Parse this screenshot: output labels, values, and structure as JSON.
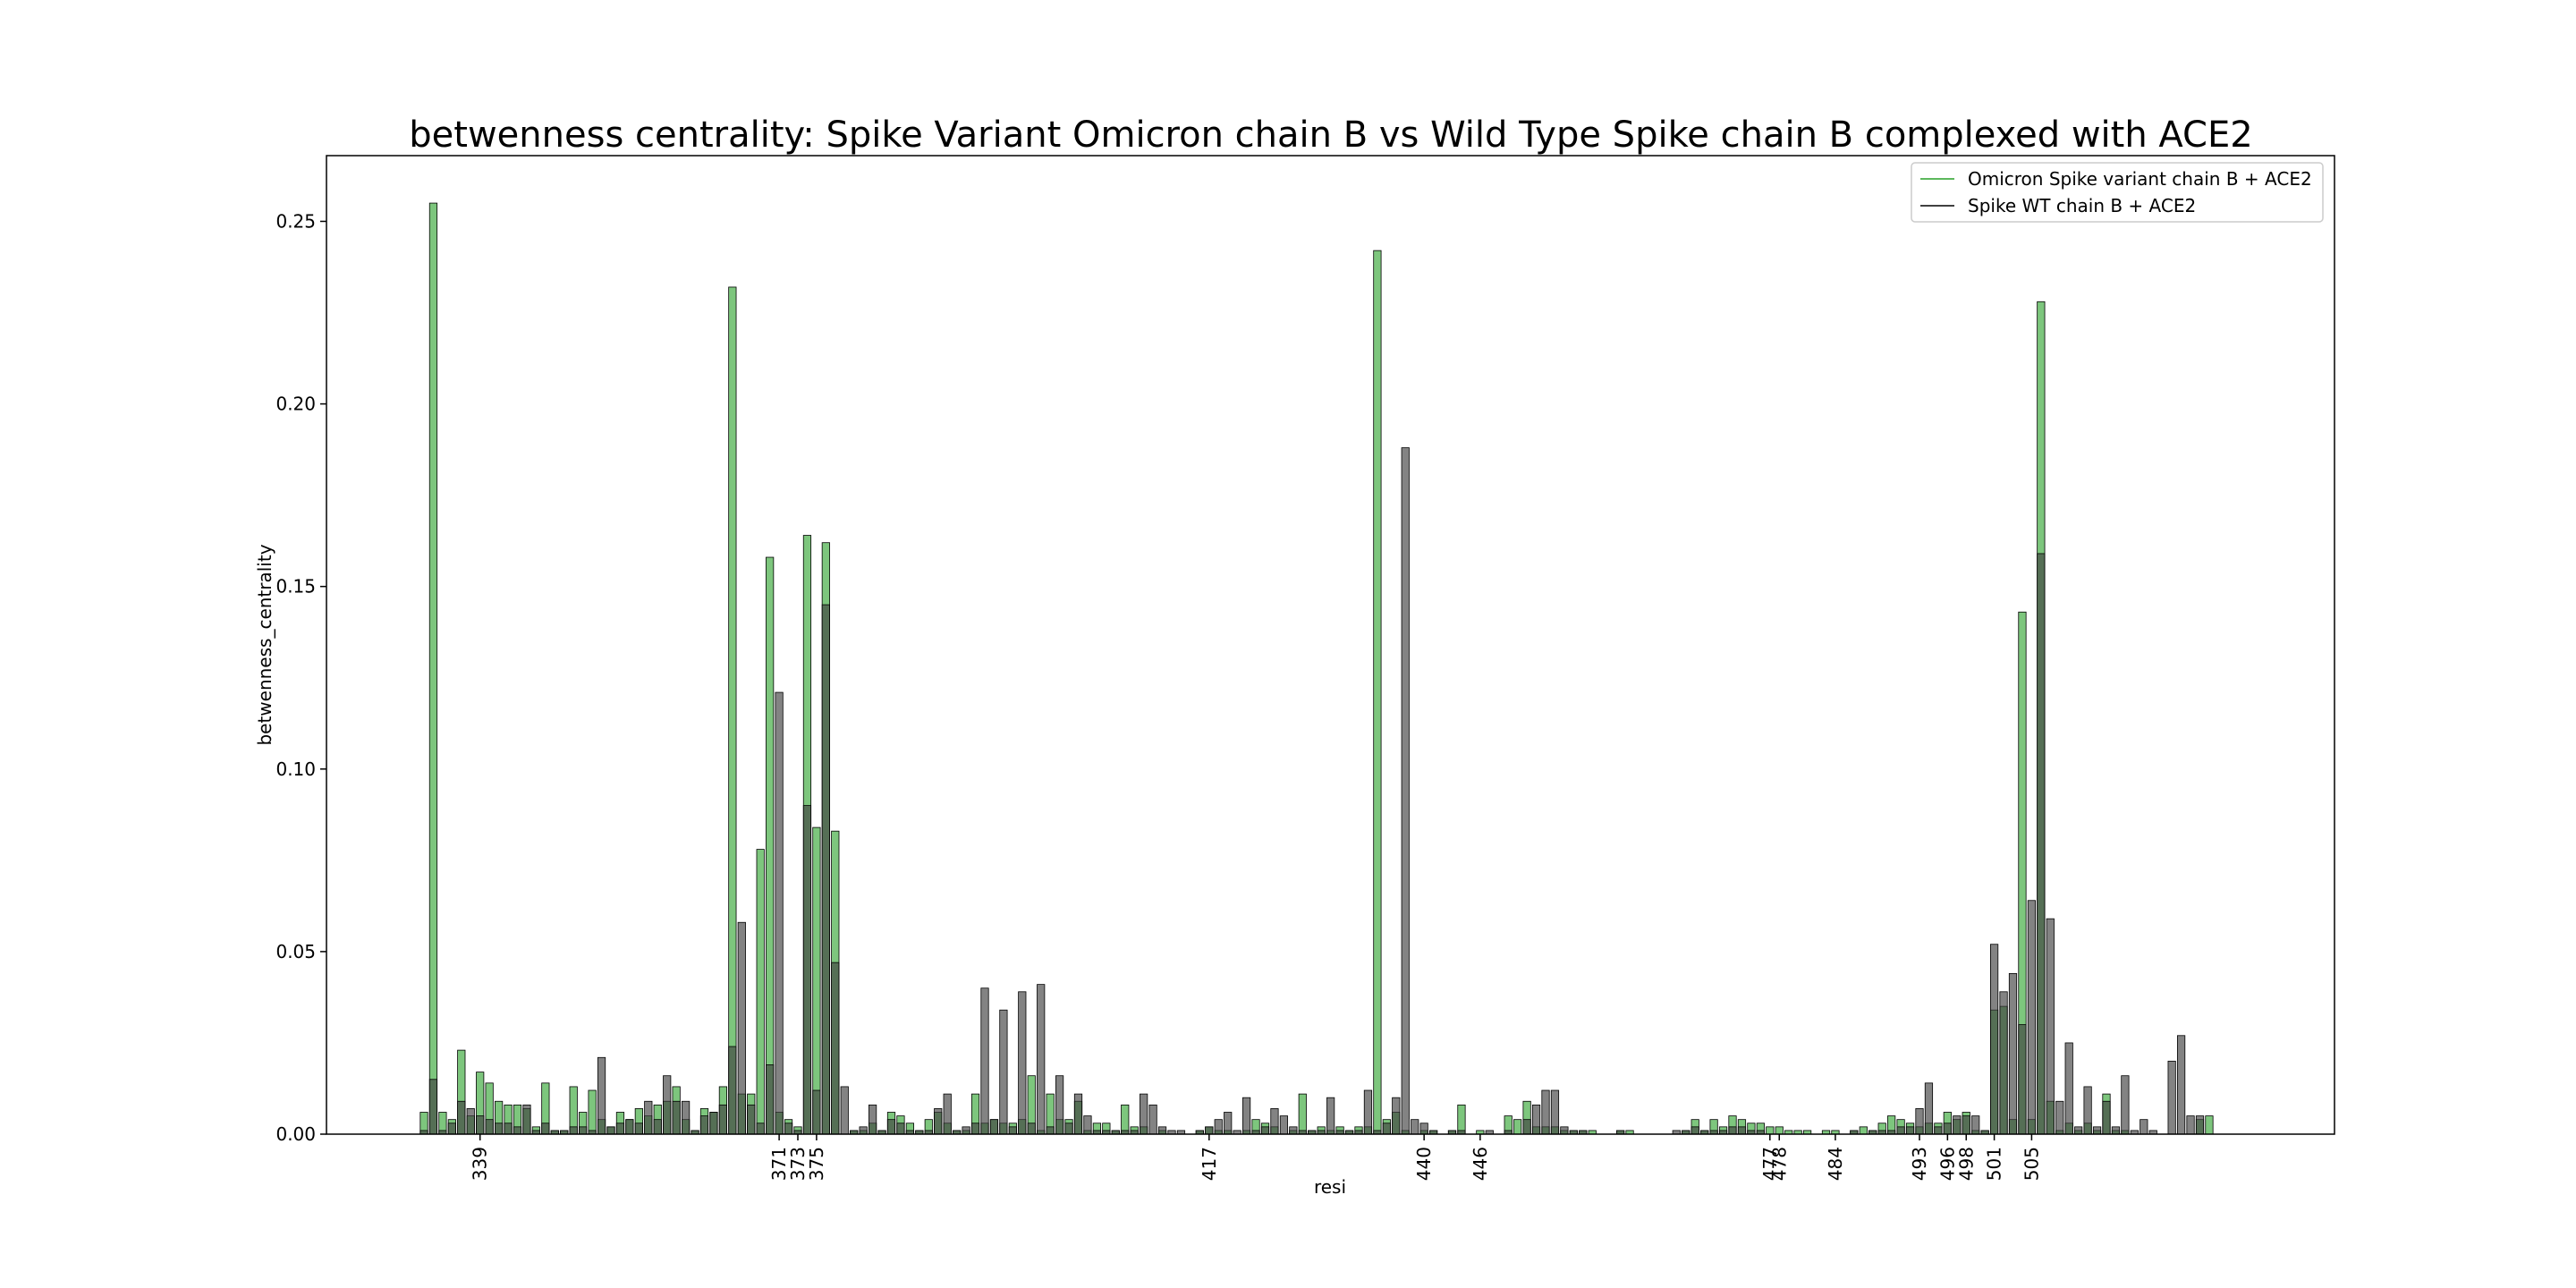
{
  "chart_data": {
    "type": "bar",
    "title": "betwenness centrality: Spike Variant Omicron chain B vs Wild Type Spike chain B complexed with ACE2",
    "xlabel": "resi",
    "ylabel": "betwenness_centrality",
    "ylim": [
      0,
      0.268
    ],
    "yticks": [
      0.0,
      0.05,
      0.1,
      0.15,
      0.2,
      0.25
    ],
    "ytick_labels": [
      "0.00",
      "0.05",
      "0.10",
      "0.15",
      "0.20",
      "0.25"
    ],
    "x_start_resi": 333,
    "xtick_values": [
      339,
      371,
      373,
      375,
      417,
      440,
      446,
      477,
      478,
      484,
      493,
      496,
      498,
      501,
      505
    ],
    "xtick_labels": [
      "339",
      "371",
      "373",
      "375",
      "417",
      "440",
      "446",
      "477",
      "478",
      "484",
      "493",
      "496",
      "498",
      "501",
      "505"
    ],
    "grid": false,
    "legend_position": "top-right",
    "colors": {
      "omicron": "#5cb85c",
      "wt": "#404040"
    },
    "series": [
      {
        "name": "Omicron Spike variant chain B + ACE2",
        "values": [
          0.006,
          0.255,
          0.006,
          0.004,
          0.023,
          0.005,
          0.017,
          0.014,
          0.009,
          0.008,
          0.008,
          0.007,
          0.002,
          0.014,
          0.001,
          0.001,
          0.013,
          0.006,
          0.012,
          0.004,
          0.002,
          0.006,
          0.004,
          0.007,
          0.005,
          0.008,
          0.009,
          0.013,
          0.004,
          0.001,
          0.007,
          0.006,
          0.013,
          0.232,
          0.011,
          0.011,
          0.078,
          0.158,
          0.006,
          0.004,
          0.002,
          0.164,
          0.084,
          0.162,
          0.083,
          0.0,
          0.001,
          0.001,
          0.003,
          0.001,
          0.006,
          0.005,
          0.003,
          0.001,
          0.004,
          0.006,
          0.003,
          0.001,
          0.001,
          0.011,
          0.003,
          0.004,
          0.003,
          0.003,
          0.004,
          0.016,
          0.001,
          0.011,
          0.004,
          0.004,
          0.009,
          0.001,
          0.003,
          0.003,
          0.001,
          0.008,
          0.002,
          0.002,
          0.0,
          0.001,
          0.0,
          0.0,
          0.0,
          0.001,
          0.002,
          0.001,
          0.001,
          0.0,
          0.001,
          0.004,
          0.003,
          0.002,
          0.0,
          0.001,
          0.011,
          0.001,
          0.002,
          0.001,
          0.002,
          0.001,
          0.002,
          0.002,
          0.242,
          0.004,
          0.006,
          0.001,
          0.0,
          0.001,
          0.001,
          0.0,
          0.001,
          0.008,
          0.0,
          0.001,
          0.0,
          0.0,
          0.005,
          0.004,
          0.009,
          0.002,
          0.002,
          0.002,
          0.001,
          0.001,
          0.001,
          0.001,
          0.0,
          0.0,
          0.001,
          0.001,
          0.0,
          0.0,
          0.0,
          0.0,
          0.0,
          0.001,
          0.004,
          0.001,
          0.004,
          0.002,
          0.005,
          0.004,
          0.003,
          0.003,
          0.002,
          0.002,
          0.001,
          0.001,
          0.001,
          0.0,
          0.001,
          0.001,
          0.0,
          0.001,
          0.002,
          0.001,
          0.003,
          0.005,
          0.004,
          0.003,
          0.002,
          0.003,
          0.003,
          0.006,
          0.004,
          0.006,
          0.001,
          0.001,
          0.034,
          0.035,
          0.004,
          0.143,
          0.004,
          0.228,
          0.009,
          0.001,
          0.003,
          0.001,
          0.003,
          0.001,
          0.011,
          0.001,
          0.001,
          0.0,
          0.0,
          0.0,
          0.0,
          0.0,
          0.0,
          0.0,
          0.004,
          0.005
        ]
      },
      {
        "name": "Spike WT chain B + ACE2",
        "values": [
          0.001,
          0.015,
          0.001,
          0.003,
          0.009,
          0.007,
          0.005,
          0.004,
          0.003,
          0.003,
          0.002,
          0.008,
          0.001,
          0.003,
          0.001,
          0.001,
          0.002,
          0.002,
          0.001,
          0.021,
          0.002,
          0.003,
          0.004,
          0.003,
          0.009,
          0.004,
          0.016,
          0.009,
          0.009,
          0.001,
          0.005,
          0.006,
          0.008,
          0.024,
          0.058,
          0.008,
          0.003,
          0.019,
          0.121,
          0.003,
          0.001,
          0.09,
          0.012,
          0.145,
          0.047,
          0.013,
          0.001,
          0.002,
          0.008,
          0.001,
          0.004,
          0.003,
          0.001,
          0.001,
          0.001,
          0.007,
          0.011,
          0.001,
          0.002,
          0.003,
          0.04,
          0.004,
          0.034,
          0.002,
          0.039,
          0.003,
          0.041,
          0.002,
          0.016,
          0.003,
          0.011,
          0.005,
          0.001,
          0.001,
          0.001,
          0.001,
          0.001,
          0.011,
          0.008,
          0.002,
          0.001,
          0.001,
          0.0,
          0.001,
          0.002,
          0.004,
          0.006,
          0.001,
          0.01,
          0.001,
          0.002,
          0.007,
          0.005,
          0.002,
          0.001,
          0.001,
          0.001,
          0.01,
          0.001,
          0.001,
          0.001,
          0.012,
          0.001,
          0.003,
          0.01,
          0.188,
          0.004,
          0.003,
          0.001,
          0.0,
          0.001,
          0.001,
          0.0,
          0.0,
          0.001,
          0.0,
          0.001,
          0.0,
          0.004,
          0.008,
          0.012,
          0.012,
          0.002,
          0.001,
          0.001,
          0.0,
          0.0,
          0.0,
          0.001,
          0.0,
          0.0,
          0.0,
          0.0,
          0.0,
          0.001,
          0.001,
          0.002,
          0.001,
          0.001,
          0.001,
          0.002,
          0.002,
          0.001,
          0.001,
          0.0,
          0.0,
          0.0,
          0.0,
          0.0,
          0.0,
          0.0,
          0.0,
          0.0,
          0.001,
          0.0,
          0.001,
          0.001,
          0.001,
          0.002,
          0.002,
          0.007,
          0.014,
          0.002,
          0.003,
          0.005,
          0.005,
          0.005,
          0.001,
          0.052,
          0.039,
          0.044,
          0.03,
          0.064,
          0.159,
          0.059,
          0.009,
          0.025,
          0.002,
          0.013,
          0.002,
          0.009,
          0.002,
          0.016,
          0.001,
          0.004,
          0.001,
          0.0,
          0.02,
          0.027,
          0.005,
          0.005
        ]
      }
    ]
  }
}
